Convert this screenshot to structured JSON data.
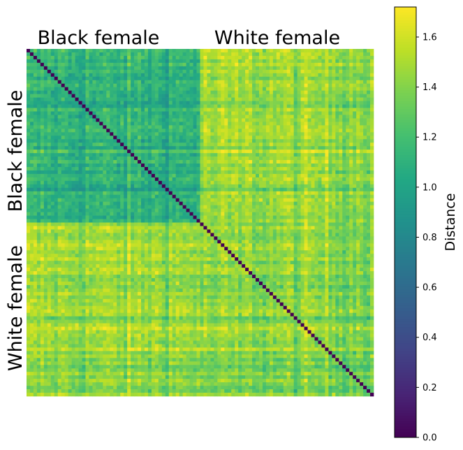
{
  "chart_data": {
    "type": "heatmap",
    "title": "",
    "xlabel": "",
    "ylabel": "",
    "groups": [
      "Black female",
      "White female"
    ],
    "x_group_labels": [
      "Black female",
      "White female"
    ],
    "y_group_labels": [
      "Black female",
      "White female"
    ],
    "n_per_group": 50,
    "matrix_size": 100,
    "diagonal_value": 0.0,
    "approx_block_mean_distance": {
      "black_black": 1.1,
      "black_white": 1.45,
      "white_white": 1.4
    },
    "colorbar": {
      "label": "Distance",
      "min": 0.0,
      "max": 1.72,
      "ticks": [
        0.0,
        0.2,
        0.4,
        0.6,
        0.8,
        1.0,
        1.2,
        1.4,
        1.6
      ],
      "tick_labels": [
        "0.0",
        "0.2",
        "0.4",
        "0.6",
        "0.8",
        "1.0",
        "1.2",
        "1.4",
        "1.6"
      ],
      "colormap": "viridis"
    },
    "legend": "none",
    "grid": false
  }
}
